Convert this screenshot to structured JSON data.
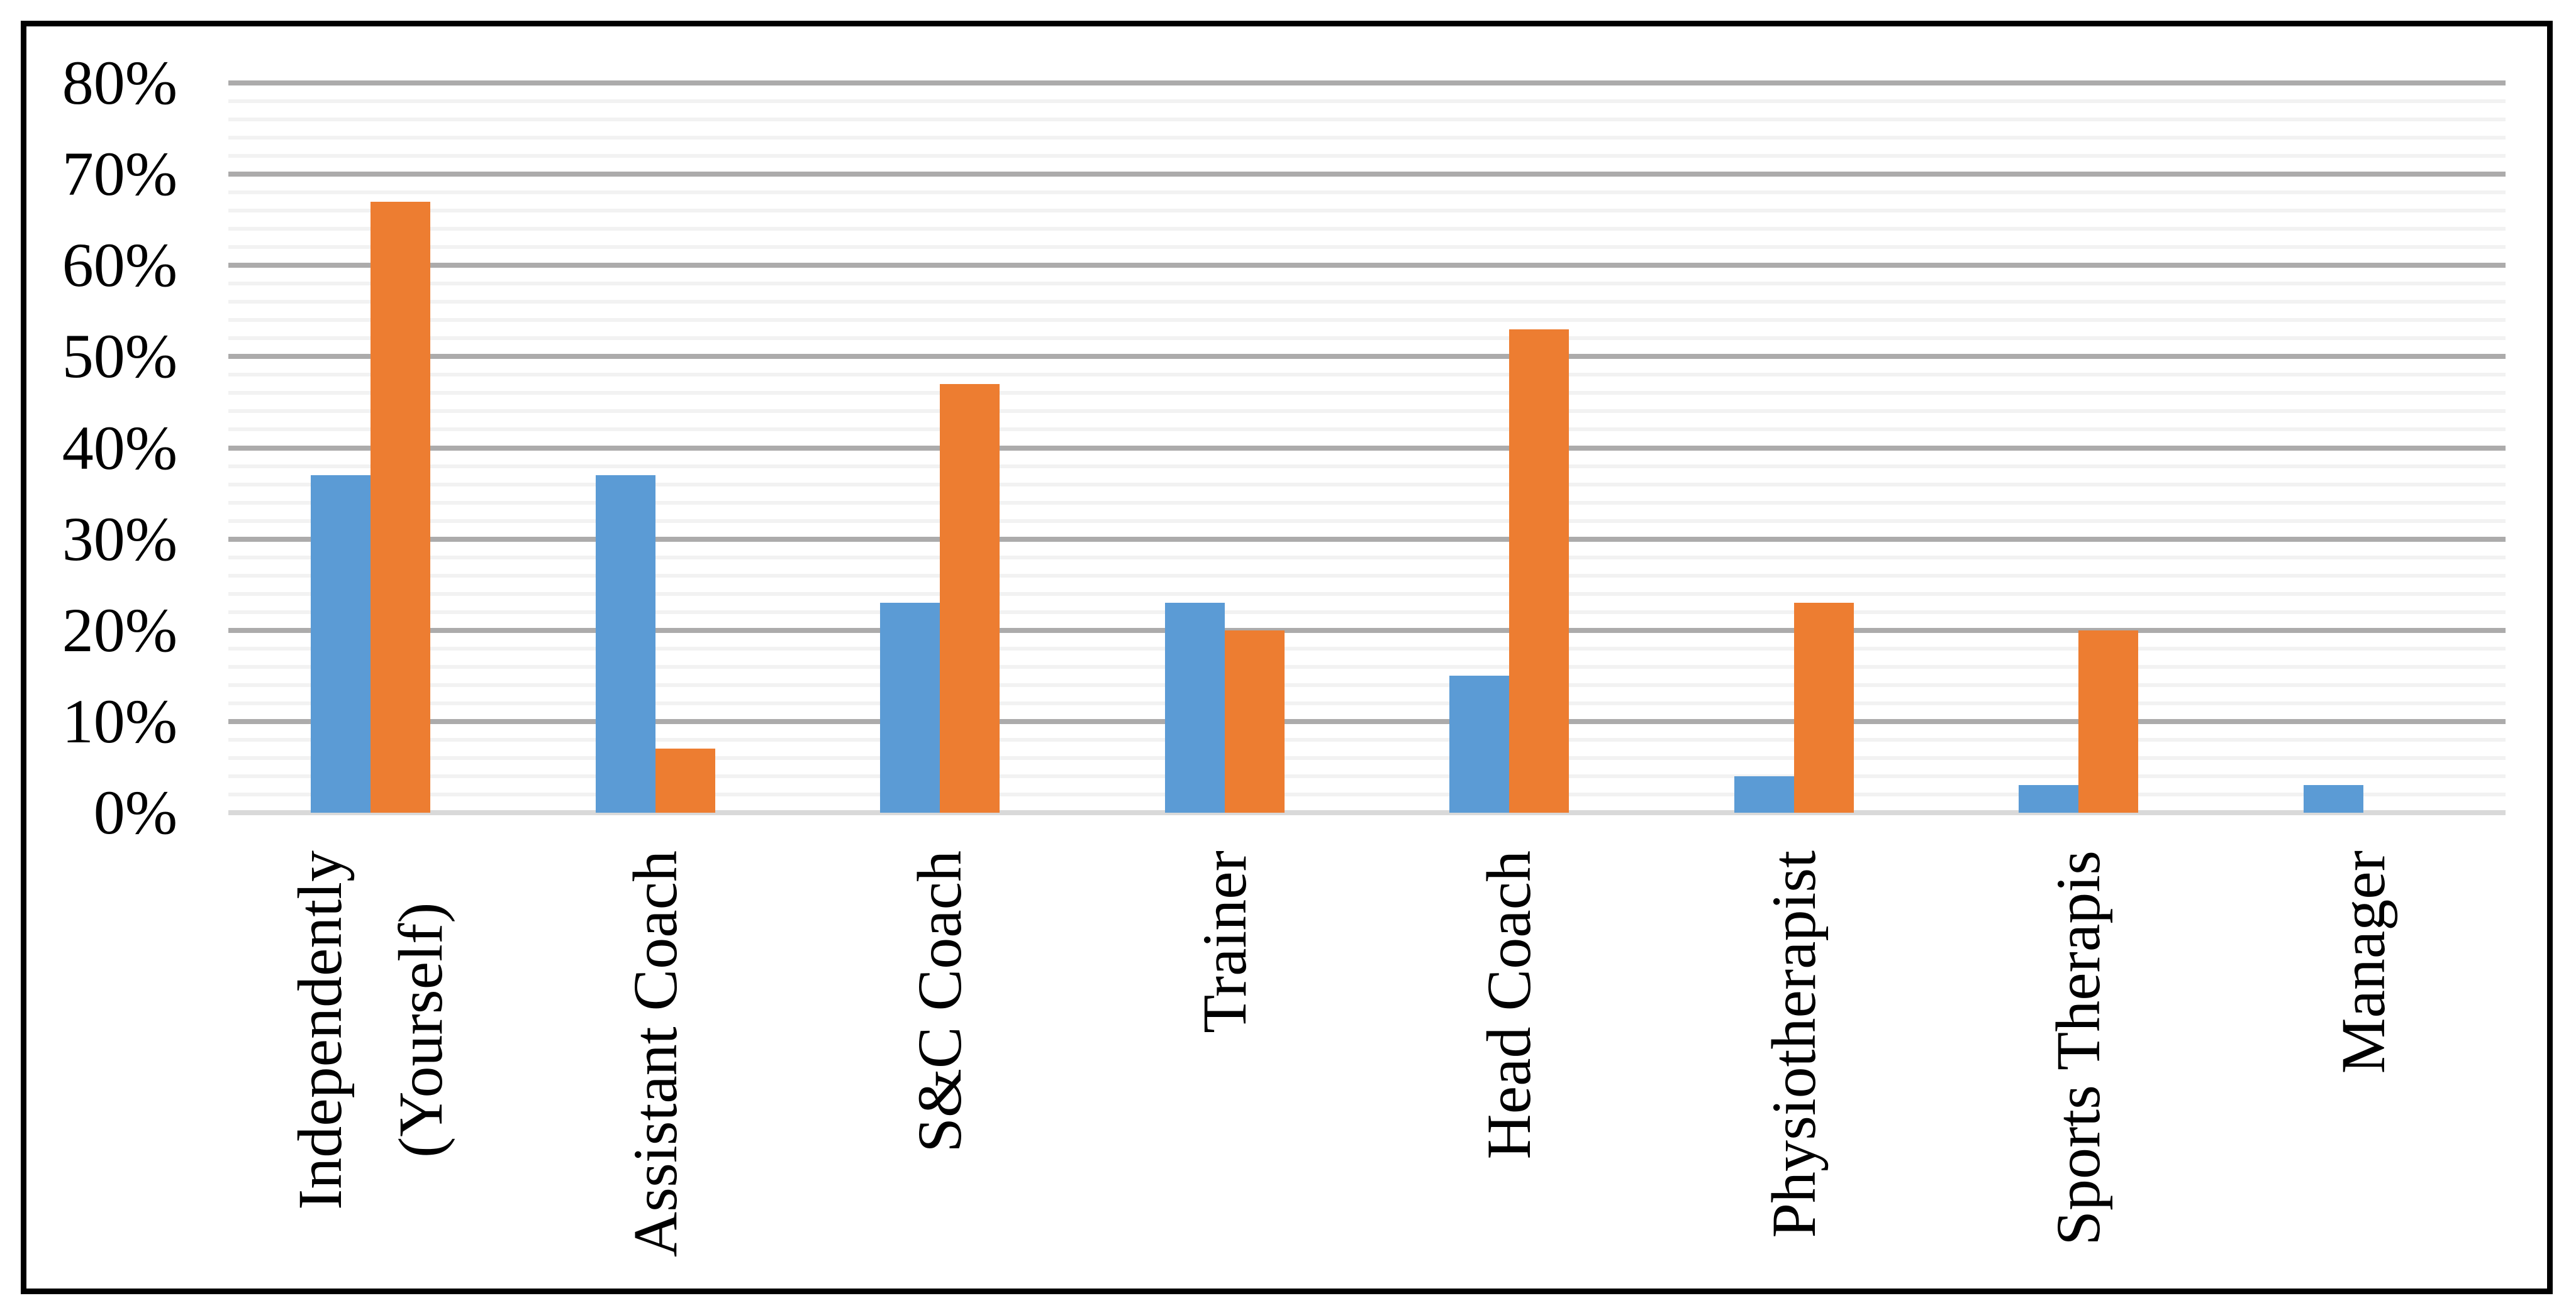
{
  "chart_data": {
    "type": "bar",
    "title": "",
    "xlabel": "",
    "ylabel": "",
    "categories": [
      "Independently\n(Yourself)",
      "Assistant Coach",
      "S&C Coach",
      "Trainer",
      "Head Coach",
      "Physiotherapist",
      "Sports Therapis",
      "Manager"
    ],
    "series": [
      {
        "name": "blue-series",
        "color": "#5B9BD5",
        "values": [
          37,
          37,
          23,
          23,
          15,
          4,
          3,
          3
        ]
      },
      {
        "name": "orange-series",
        "color": "#ED7D31",
        "values": [
          67,
          7,
          47,
          20,
          53,
          23,
          20,
          0
        ]
      }
    ],
    "ylim": [
      0,
      80
    ],
    "y_tick_values": [
      80,
      70,
      60,
      50,
      40,
      30,
      20,
      10,
      0
    ],
    "y_tick_labels": [
      "80%",
      "70%",
      "60%",
      "50%",
      "40%",
      "30%",
      "20%",
      "10%",
      "0%"
    ],
    "major_unit": 10,
    "minor_unit": 2,
    "grid": "horizontal major+minor",
    "legend_position": "none"
  },
  "styles": {
    "background_color": "#FFFFFF",
    "frame_border_color": "#000000",
    "major_gridline_color": "#ACABAB",
    "minor_gridline_color": "#F2F2F2",
    "axis_line_color": "#D9D9D9",
    "text_color": "#000000"
  }
}
